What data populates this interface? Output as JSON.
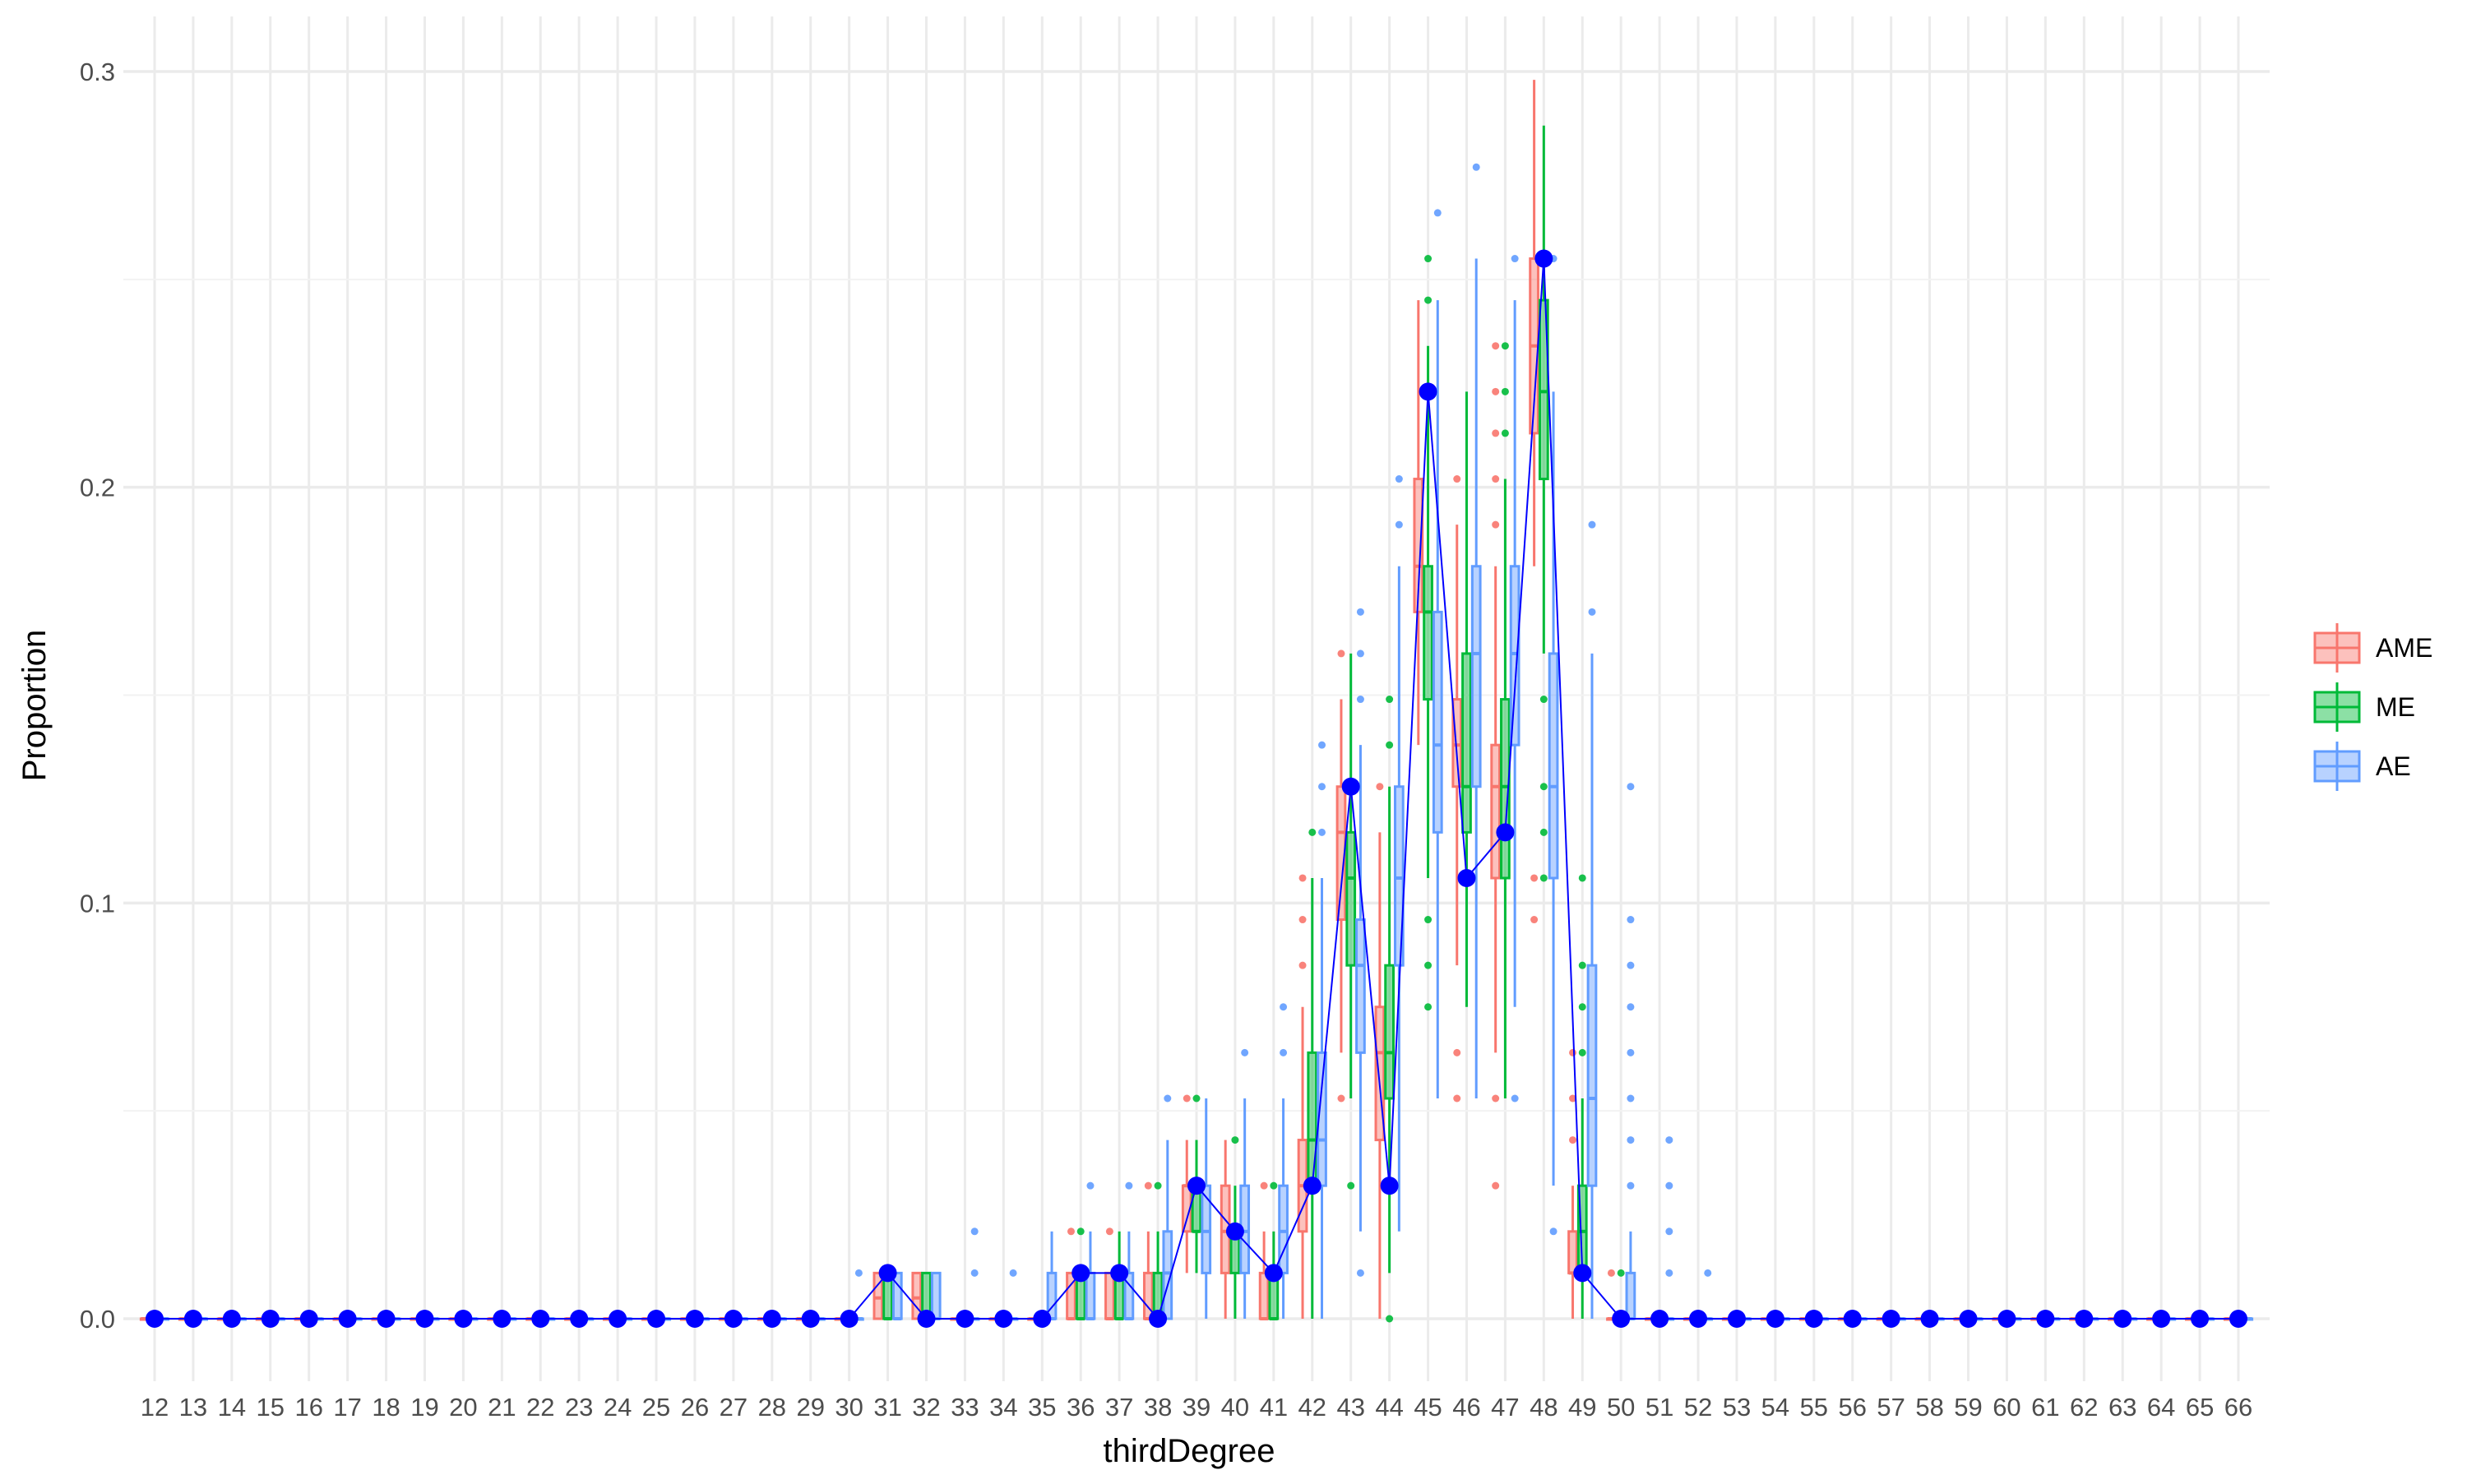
{
  "chart_data": {
    "type": "box",
    "title": "",
    "xlabel": "thirdDegree",
    "ylabel": "Proportion",
    "ylim": [
      -0.02,
      0.31
    ],
    "yticks": [
      0.0,
      0.1,
      0.2,
      0.3
    ],
    "ytick_labels": [
      "0.0",
      "0.1",
      "0.2",
      "0.3"
    ],
    "grid": true,
    "legend_position": "right",
    "categories": [
      12,
      13,
      14,
      15,
      16,
      17,
      18,
      19,
      20,
      21,
      22,
      23,
      24,
      25,
      26,
      27,
      28,
      29,
      30,
      31,
      32,
      33,
      34,
      35,
      36,
      37,
      38,
      39,
      40,
      41,
      42,
      43,
      44,
      45,
      46,
      47,
      48,
      49,
      50,
      51,
      52,
      53,
      54,
      55,
      56,
      57,
      58,
      59,
      60,
      61,
      62,
      63,
      64,
      65,
      66
    ],
    "series": [
      {
        "name": "AME",
        "color": "#F8766D",
        "boxes": [
          {
            "x": 31,
            "q1": 0.0,
            "median": 0.005,
            "q3": 0.011,
            "lo": 0.0,
            "hi": 0.011,
            "outliers": []
          },
          {
            "x": 32,
            "q1": 0.0,
            "median": 0.005,
            "q3": 0.011,
            "lo": 0.0,
            "hi": 0.011,
            "outliers": []
          },
          {
            "x": 36,
            "q1": 0.0,
            "median": 0.0,
            "q3": 0.011,
            "lo": 0.0,
            "hi": 0.011,
            "outliers": [
              0.021
            ]
          },
          {
            "x": 37,
            "q1": 0.0,
            "median": 0.0,
            "q3": 0.011,
            "lo": 0.0,
            "hi": 0.011,
            "outliers": [
              0.021
            ]
          },
          {
            "x": 38,
            "q1": 0.0,
            "median": 0.0,
            "q3": 0.011,
            "lo": 0.0,
            "hi": 0.021,
            "outliers": [
              0.032
            ]
          },
          {
            "x": 39,
            "q1": 0.021,
            "median": 0.032,
            "q3": 0.032,
            "lo": 0.011,
            "hi": 0.043,
            "outliers": [
              0.053
            ]
          },
          {
            "x": 40,
            "q1": 0.011,
            "median": 0.021,
            "q3": 0.032,
            "lo": 0.0,
            "hi": 0.043,
            "outliers": []
          },
          {
            "x": 41,
            "q1": 0.0,
            "median": 0.0,
            "q3": 0.011,
            "lo": 0.0,
            "hi": 0.021,
            "outliers": [
              0.032
            ]
          },
          {
            "x": 42,
            "q1": 0.021,
            "median": 0.032,
            "q3": 0.043,
            "lo": 0.0,
            "hi": 0.075,
            "outliers": [
              0.085,
              0.096,
              0.106
            ]
          },
          {
            "x": 43,
            "q1": 0.096,
            "median": 0.117,
            "q3": 0.128,
            "lo": 0.064,
            "hi": 0.149,
            "outliers": [
              0.053,
              0.16
            ]
          },
          {
            "x": 44,
            "q1": 0.043,
            "median": 0.064,
            "q3": 0.075,
            "lo": 0.0,
            "hi": 0.117,
            "outliers": [
              0.128
            ]
          },
          {
            "x": 45,
            "q1": 0.17,
            "median": 0.181,
            "q3": 0.202,
            "lo": 0.138,
            "hi": 0.245,
            "outliers": []
          },
          {
            "x": 46,
            "q1": 0.128,
            "median": 0.138,
            "q3": 0.149,
            "lo": 0.085,
            "hi": 0.191,
            "outliers": [
              0.064,
              0.053,
              0.202
            ]
          },
          {
            "x": 47,
            "q1": 0.106,
            "median": 0.128,
            "q3": 0.138,
            "lo": 0.064,
            "hi": 0.181,
            "outliers": [
              0.053,
              0.032,
              0.191,
              0.202,
              0.213,
              0.223,
              0.234
            ]
          },
          {
            "x": 48,
            "q1": 0.213,
            "median": 0.234,
            "q3": 0.255,
            "lo": 0.181,
            "hi": 0.298,
            "outliers": [
              0.096,
              0.106
            ]
          },
          {
            "x": 49,
            "q1": 0.011,
            "median": 0.011,
            "q3": 0.021,
            "lo": 0.0,
            "hi": 0.032,
            "outliers": [
              0.043,
              0.053,
              0.064
            ]
          },
          {
            "x": 50,
            "q1": 0.0,
            "median": 0.0,
            "q3": 0.0,
            "lo": 0.0,
            "hi": 0.0,
            "outliers": [
              0.011
            ]
          }
        ]
      },
      {
        "name": "ME",
        "color": "#00BA38",
        "boxes": [
          {
            "x": 31,
            "q1": 0.0,
            "median": 0.0,
            "q3": 0.011,
            "lo": 0.0,
            "hi": 0.011,
            "outliers": []
          },
          {
            "x": 32,
            "q1": 0.0,
            "median": 0.0,
            "q3": 0.011,
            "lo": 0.0,
            "hi": 0.011,
            "outliers": []
          },
          {
            "x": 36,
            "q1": 0.0,
            "median": 0.0,
            "q3": 0.011,
            "lo": 0.0,
            "hi": 0.011,
            "outliers": [
              0.021
            ]
          },
          {
            "x": 37,
            "q1": 0.0,
            "median": 0.0,
            "q3": 0.011,
            "lo": 0.0,
            "hi": 0.021,
            "outliers": []
          },
          {
            "x": 38,
            "q1": 0.0,
            "median": 0.0,
            "q3": 0.011,
            "lo": 0.0,
            "hi": 0.021,
            "outliers": [
              0.032
            ]
          },
          {
            "x": 39,
            "q1": 0.021,
            "median": 0.021,
            "q3": 0.032,
            "lo": 0.011,
            "hi": 0.043,
            "outliers": [
              0.053
            ]
          },
          {
            "x": 40,
            "q1": 0.011,
            "median": 0.021,
            "q3": 0.021,
            "lo": 0.0,
            "hi": 0.032,
            "outliers": [
              0.043
            ]
          },
          {
            "x": 41,
            "q1": 0.0,
            "median": 0.0,
            "q3": 0.011,
            "lo": 0.0,
            "hi": 0.021,
            "outliers": [
              0.032
            ]
          },
          {
            "x": 42,
            "q1": 0.032,
            "median": 0.043,
            "q3": 0.064,
            "lo": 0.0,
            "hi": 0.106,
            "outliers": [
              0.117
            ]
          },
          {
            "x": 43,
            "q1": 0.085,
            "median": 0.106,
            "q3": 0.117,
            "lo": 0.053,
            "hi": 0.16,
            "outliers": [
              0.032
            ]
          },
          {
            "x": 44,
            "q1": 0.053,
            "median": 0.064,
            "q3": 0.085,
            "lo": 0.011,
            "hi": 0.128,
            "outliers": [
              0.0,
              0.138,
              0.149
            ]
          },
          {
            "x": 45,
            "q1": 0.149,
            "median": 0.17,
            "q3": 0.181,
            "lo": 0.106,
            "hi": 0.234,
            "outliers": [
              0.075,
              0.085,
              0.096,
              0.245,
              0.255
            ]
          },
          {
            "x": 46,
            "q1": 0.117,
            "median": 0.128,
            "q3": 0.16,
            "lo": 0.075,
            "hi": 0.223,
            "outliers": []
          },
          {
            "x": 47,
            "q1": 0.106,
            "median": 0.128,
            "q3": 0.149,
            "lo": 0.053,
            "hi": 0.202,
            "outliers": [
              0.213,
              0.223,
              0.234
            ]
          },
          {
            "x": 48,
            "q1": 0.202,
            "median": 0.223,
            "q3": 0.245,
            "lo": 0.16,
            "hi": 0.287,
            "outliers": [
              0.106,
              0.117,
              0.128,
              0.149
            ]
          },
          {
            "x": 49,
            "q1": 0.011,
            "median": 0.021,
            "q3": 0.032,
            "lo": 0.0,
            "hi": 0.053,
            "outliers": [
              0.064,
              0.075,
              0.085,
              0.106
            ]
          },
          {
            "x": 50,
            "q1": 0.0,
            "median": 0.0,
            "q3": 0.0,
            "lo": 0.0,
            "hi": 0.0,
            "outliers": [
              0.011
            ]
          }
        ]
      },
      {
        "name": "AE",
        "color": "#619CFF",
        "boxes": [
          {
            "x": 30,
            "q1": 0.0,
            "median": 0.0,
            "q3": 0.0,
            "lo": 0.0,
            "hi": 0.0,
            "outliers": [
              0.011
            ]
          },
          {
            "x": 31,
            "q1": 0.0,
            "median": 0.0,
            "q3": 0.011,
            "lo": 0.0,
            "hi": 0.011,
            "outliers": []
          },
          {
            "x": 32,
            "q1": 0.0,
            "median": 0.0,
            "q3": 0.011,
            "lo": 0.0,
            "hi": 0.011,
            "outliers": []
          },
          {
            "x": 33,
            "q1": 0.0,
            "median": 0.0,
            "q3": 0.0,
            "lo": 0.0,
            "hi": 0.0,
            "outliers": [
              0.011,
              0.021
            ]
          },
          {
            "x": 34,
            "q1": 0.0,
            "median": 0.0,
            "q3": 0.0,
            "lo": 0.0,
            "hi": 0.0,
            "outliers": [
              0.011
            ]
          },
          {
            "x": 35,
            "q1": 0.0,
            "median": 0.0,
            "q3": 0.011,
            "lo": 0.0,
            "hi": 0.021,
            "outliers": []
          },
          {
            "x": 36,
            "q1": 0.0,
            "median": 0.0,
            "q3": 0.011,
            "lo": 0.0,
            "hi": 0.021,
            "outliers": [
              0.032
            ]
          },
          {
            "x": 37,
            "q1": 0.0,
            "median": 0.0,
            "q3": 0.011,
            "lo": 0.0,
            "hi": 0.021,
            "outliers": [
              0.032
            ]
          },
          {
            "x": 38,
            "q1": 0.0,
            "median": 0.011,
            "q3": 0.021,
            "lo": 0.0,
            "hi": 0.043,
            "outliers": [
              0.053
            ]
          },
          {
            "x": 39,
            "q1": 0.011,
            "median": 0.021,
            "q3": 0.032,
            "lo": 0.0,
            "hi": 0.053,
            "outliers": []
          },
          {
            "x": 40,
            "q1": 0.011,
            "median": 0.021,
            "q3": 0.032,
            "lo": 0.0,
            "hi": 0.053,
            "outliers": [
              0.064
            ]
          },
          {
            "x": 41,
            "q1": 0.011,
            "median": 0.021,
            "q3": 0.032,
            "lo": 0.0,
            "hi": 0.053,
            "outliers": [
              0.064,
              0.075
            ]
          },
          {
            "x": 42,
            "q1": 0.032,
            "median": 0.043,
            "q3": 0.064,
            "lo": 0.0,
            "hi": 0.106,
            "outliers": [
              0.117,
              0.128,
              0.138
            ]
          },
          {
            "x": 43,
            "q1": 0.064,
            "median": 0.085,
            "q3": 0.096,
            "lo": 0.021,
            "hi": 0.138,
            "outliers": [
              0.011,
              0.149,
              0.16,
              0.17
            ]
          },
          {
            "x": 44,
            "q1": 0.085,
            "median": 0.106,
            "q3": 0.128,
            "lo": 0.021,
            "hi": 0.181,
            "outliers": [
              0.191,
              0.202
            ]
          },
          {
            "x": 45,
            "q1": 0.117,
            "median": 0.138,
            "q3": 0.17,
            "lo": 0.053,
            "hi": 0.245,
            "outliers": [
              0.266
            ]
          },
          {
            "x": 46,
            "q1": 0.128,
            "median": 0.16,
            "q3": 0.181,
            "lo": 0.053,
            "hi": 0.255,
            "outliers": [
              0.277
            ]
          },
          {
            "x": 47,
            "q1": 0.138,
            "median": 0.16,
            "q3": 0.181,
            "lo": 0.075,
            "hi": 0.245,
            "outliers": [
              0.053,
              0.255
            ]
          },
          {
            "x": 48,
            "q1": 0.106,
            "median": 0.128,
            "q3": 0.16,
            "lo": 0.032,
            "hi": 0.223,
            "outliers": [
              0.021,
              0.255
            ]
          },
          {
            "x": 49,
            "q1": 0.032,
            "median": 0.053,
            "q3": 0.085,
            "lo": 0.0,
            "hi": 0.16,
            "outliers": [
              0.17,
              0.191
            ]
          },
          {
            "x": 50,
            "q1": 0.0,
            "median": 0.0,
            "q3": 0.011,
            "lo": 0.0,
            "hi": 0.021,
            "outliers": [
              0.032,
              0.043,
              0.053,
              0.064,
              0.075,
              0.085,
              0.096,
              0.128
            ]
          },
          {
            "x": 51,
            "q1": 0.0,
            "median": 0.0,
            "q3": 0.0,
            "lo": 0.0,
            "hi": 0.0,
            "outliers": [
              0.011,
              0.021,
              0.032,
              0.043
            ]
          },
          {
            "x": 52,
            "q1": 0.0,
            "median": 0.0,
            "q3": 0.0,
            "lo": 0.0,
            "hi": 0.0,
            "outliers": [
              0.011
            ]
          }
        ]
      }
    ],
    "reference_line": {
      "color": "#0000FF",
      "x": [
        12,
        13,
        14,
        15,
        16,
        17,
        18,
        19,
        20,
        21,
        22,
        23,
        24,
        25,
        26,
        27,
        28,
        29,
        30,
        31,
        32,
        33,
        34,
        35,
        36,
        37,
        38,
        39,
        40,
        41,
        42,
        43,
        44,
        45,
        46,
        47,
        48,
        49,
        50,
        51,
        52,
        53,
        54,
        55,
        56,
        57,
        58,
        59,
        60,
        61,
        62,
        63,
        64,
        65,
        66
      ],
      "y": [
        0,
        0,
        0,
        0,
        0,
        0,
        0,
        0,
        0,
        0,
        0,
        0,
        0,
        0,
        0,
        0,
        0,
        0,
        0,
        0.011,
        0,
        0,
        0,
        0,
        0.011,
        0.011,
        0,
        0.032,
        0.021,
        0.011,
        0.032,
        0.128,
        0.032,
        0.223,
        0.106,
        0.117,
        0.255,
        0.011,
        0,
        0,
        0,
        0,
        0,
        0,
        0,
        0,
        0,
        0,
        0,
        0,
        0,
        0,
        0,
        0,
        0
      ]
    }
  }
}
